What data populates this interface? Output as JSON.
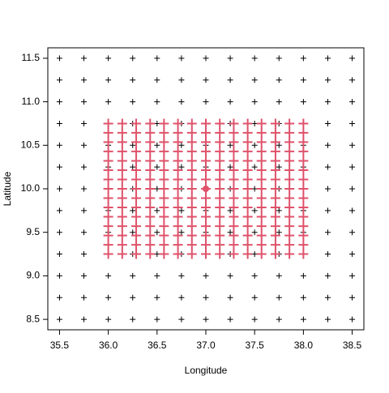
{
  "chart_data": {
    "type": "scatter",
    "xlabel": "Longitude",
    "ylabel": "Latitude",
    "xlim": [
      35.38,
      38.62
    ],
    "ylim": [
      8.38,
      11.62
    ],
    "xticks": [
      35.5,
      {
        "value": 36,
        "label": "36.0"
      },
      36.5,
      {
        "value": 37,
        "label": "37.0"
      },
      37.5,
      {
        "value": 38,
        "label": "38.0"
      },
      38.5
    ],
    "yticks": [
      8.5,
      {
        "value": 9,
        "label": "9.0"
      },
      9.5,
      {
        "value": 10,
        "label": "10.0"
      },
      10.5,
      {
        "value": 11,
        "label": "11.0"
      },
      11.5
    ],
    "series": [
      {
        "marker": "plus",
        "color": "#000000",
        "layout": "grid",
        "x": [
          35.5,
          35.75,
          36,
          36.25,
          36.5,
          36.75,
          37,
          37.25,
          37.5,
          37.75,
          38,
          38.25,
          38.5
        ],
        "y": [
          8.5,
          8.75,
          9,
          9.25,
          9.5,
          9.75,
          10,
          10.25,
          10.5,
          10.75,
          11,
          11.25,
          11.5
        ]
      },
      {
        "marker": "plus",
        "color": "#DF536B",
        "layout": "grid",
        "x": [
          36,
          36.143,
          36.286,
          36.429,
          36.571,
          36.714,
          36.857,
          37,
          37.143,
          37.286,
          37.429,
          37.571,
          37.714,
          37.857,
          38
        ],
        "y": [
          9.25,
          9.357,
          9.464,
          9.571,
          9.679,
          9.786,
          9.893,
          10,
          10.107,
          10.214,
          10.321,
          10.429,
          10.536,
          10.643,
          10.75
        ]
      },
      {
        "marker": "dot",
        "color": "#DF536B",
        "layout": "points",
        "x": [
          37
        ],
        "y": [
          10
        ]
      }
    ]
  }
}
